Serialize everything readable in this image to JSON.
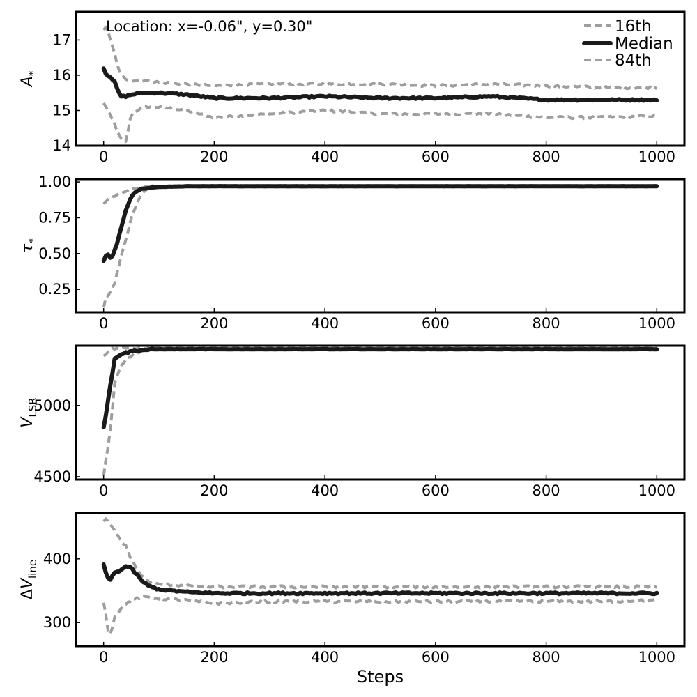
{
  "annotation": "Location: x=-0.06\", y=0.30\"",
  "legend": [
    "16th",
    "Median",
    "84th"
  ],
  "colors": {
    "median": "#1a1a1a",
    "percentile": "#9e9e9e"
  },
  "chart_data": [
    {
      "type": "line",
      "ylabel": "A*",
      "xlim": [
        -50,
        1050
      ],
      "ylim": [
        14,
        17.8
      ],
      "xticks": [
        0,
        200,
        400,
        600,
        800,
        1000
      ],
      "xticklabels": [
        "0",
        "200",
        "400",
        "600",
        "800",
        "1000"
      ],
      "yticks": [
        14,
        15,
        16,
        17
      ],
      "yticklabels": [
        "14",
        "15",
        "16",
        "17"
      ],
      "series": [
        {
          "name": "16th",
          "x": [
            0,
            5,
            10,
            20,
            30,
            40,
            50,
            70,
            100,
            150,
            200,
            300,
            400,
            500,
            600,
            700,
            800,
            900,
            1000
          ],
          "y": [
            15.2,
            15.1,
            14.9,
            14.6,
            14.2,
            14.1,
            14.9,
            15.1,
            15.1,
            15.0,
            14.8,
            14.9,
            15.0,
            14.9,
            14.9,
            14.9,
            14.8,
            14.8,
            14.85
          ]
        },
        {
          "name": "Median",
          "x": [
            0,
            5,
            10,
            20,
            30,
            40,
            50,
            70,
            100,
            150,
            200,
            300,
            400,
            500,
            600,
            700,
            800,
            900,
            1000
          ],
          "y": [
            16.2,
            16.0,
            16.0,
            15.8,
            15.4,
            15.4,
            15.45,
            15.5,
            15.5,
            15.45,
            15.35,
            15.35,
            15.4,
            15.35,
            15.35,
            15.4,
            15.3,
            15.3,
            15.3
          ]
        },
        {
          "name": "84th",
          "x": [
            0,
            5,
            10,
            20,
            30,
            40,
            50,
            70,
            100,
            150,
            200,
            300,
            400,
            500,
            600,
            700,
            800,
            900,
            1000
          ],
          "y": [
            17.3,
            17.4,
            17.1,
            16.6,
            16.0,
            15.9,
            15.85,
            15.85,
            15.8,
            15.75,
            15.7,
            15.75,
            15.75,
            15.75,
            15.7,
            15.75,
            15.7,
            15.65,
            15.65
          ]
        }
      ]
    },
    {
      "type": "line",
      "ylabel": "τ*",
      "xlim": [
        -50,
        1050
      ],
      "ylim": [
        0.09,
        1.02
      ],
      "xticks": [
        0,
        200,
        400,
        600,
        800,
        1000
      ],
      "xticklabels": [
        "0",
        "200",
        "400",
        "600",
        "800",
        "1000"
      ],
      "yticks": [
        0.25,
        0.5,
        0.75,
        1.0
      ],
      "yticklabels": [
        "0.25",
        "0.50",
        "0.75",
        "1.00"
      ],
      "series": [
        {
          "name": "16th",
          "x": [
            0,
            5,
            10,
            15,
            20,
            30,
            40,
            50,
            60,
            70,
            80,
            100,
            150,
            200,
            400,
            600,
            800,
            1000
          ],
          "y": [
            0.12,
            0.2,
            0.22,
            0.25,
            0.3,
            0.45,
            0.6,
            0.75,
            0.85,
            0.92,
            0.95,
            0.965,
            0.97,
            0.97,
            0.97,
            0.97,
            0.97,
            0.97
          ]
        },
        {
          "name": "Median",
          "x": [
            0,
            5,
            10,
            15,
            20,
            25,
            30,
            40,
            50,
            60,
            70,
            80,
            100,
            150,
            200,
            400,
            600,
            800,
            1000
          ],
          "y": [
            0.45,
            0.5,
            0.48,
            0.47,
            0.53,
            0.58,
            0.65,
            0.8,
            0.9,
            0.94,
            0.955,
            0.96,
            0.965,
            0.97,
            0.97,
            0.97,
            0.97,
            0.97,
            0.97
          ]
        },
        {
          "name": "84th",
          "x": [
            0,
            10,
            20,
            30,
            40,
            50,
            60,
            80,
            100,
            150,
            200,
            400,
            600,
            800,
            1000
          ],
          "y": [
            0.85,
            0.88,
            0.9,
            0.92,
            0.94,
            0.95,
            0.96,
            0.965,
            0.97,
            0.975,
            0.975,
            0.975,
            0.975,
            0.975,
            0.975
          ]
        }
      ]
    },
    {
      "type": "line",
      "ylabel": "V_LSR",
      "xlim": [
        -50,
        1050
      ],
      "ylim": [
        4480,
        5420
      ],
      "xticks": [
        0,
        200,
        400,
        600,
        800,
        1000
      ],
      "xticklabels": [
        "0",
        "200",
        "400",
        "600",
        "800",
        "1000"
      ],
      "yticks": [
        4500,
        5000
      ],
      "yticklabels": [
        "4500",
        "5000"
      ],
      "series": [
        {
          "name": "16th",
          "x": [
            0,
            5,
            10,
            15,
            20,
            30,
            40,
            50,
            70,
            100,
            200,
            400,
            600,
            800,
            1000
          ],
          "y": [
            4500,
            4650,
            4750,
            4950,
            5150,
            5280,
            5320,
            5350,
            5390,
            5395,
            5395,
            5395,
            5395,
            5395,
            5395
          ]
        },
        {
          "name": "Median",
          "x": [
            0,
            5,
            10,
            15,
            20,
            30,
            40,
            50,
            70,
            100,
            200,
            400,
            600,
            800,
            1000
          ],
          "y": [
            4850,
            4950,
            5100,
            5200,
            5330,
            5360,
            5370,
            5380,
            5390,
            5395,
            5395,
            5395,
            5395,
            5395,
            5395
          ]
        },
        {
          "name": "84th",
          "x": [
            0,
            5,
            10,
            20,
            30,
            50,
            70,
            100,
            200,
            400,
            600,
            800,
            1000
          ],
          "y": [
            5350,
            5370,
            5390,
            5400,
            5400,
            5405,
            5405,
            5405,
            5405,
            5405,
            5405,
            5405,
            5405
          ]
        }
      ]
    },
    {
      "type": "line",
      "ylabel": "ΔV_line",
      "xlim": [
        -50,
        1050
      ],
      "ylim": [
        263,
        472
      ],
      "xticks": [
        0,
        200,
        400,
        600,
        800,
        1000
      ],
      "xticklabels": [
        "0",
        "200",
        "400",
        "600",
        "800",
        "1000"
      ],
      "yticks": [
        300,
        400
      ],
      "yticklabels": [
        "300",
        "400"
      ],
      "series": [
        {
          "name": "16th",
          "x": [
            0,
            5,
            10,
            15,
            20,
            30,
            40,
            50,
            60,
            70,
            80,
            100,
            150,
            200,
            300,
            400,
            500,
            600,
            700,
            800,
            900,
            1000
          ],
          "y": [
            330,
            310,
            275,
            290,
            310,
            320,
            330,
            335,
            338,
            340,
            340,
            338,
            335,
            330,
            333,
            333,
            333,
            333,
            333,
            333,
            333,
            335
          ]
        },
        {
          "name": "Median",
          "x": [
            0,
            5,
            10,
            15,
            20,
            30,
            40,
            45,
            50,
            60,
            70,
            80,
            100,
            150,
            200,
            300,
            400,
            500,
            600,
            700,
            800,
            900,
            1000
          ],
          "y": [
            390,
            375,
            365,
            372,
            378,
            382,
            388,
            388,
            385,
            375,
            365,
            358,
            352,
            348,
            346,
            346,
            346,
            346,
            346,
            346,
            346,
            346,
            346
          ]
        },
        {
          "name": "84th",
          "x": [
            0,
            5,
            10,
            20,
            30,
            40,
            50,
            60,
            70,
            80,
            100,
            150,
            200,
            300,
            400,
            500,
            600,
            700,
            800,
            900,
            1000
          ],
          "y": [
            460,
            462,
            455,
            445,
            430,
            420,
            400,
            385,
            372,
            365,
            360,
            358,
            356,
            356,
            356,
            356,
            356,
            356,
            356,
            356,
            356
          ]
        }
      ],
      "xlabel": "Steps"
    }
  ]
}
